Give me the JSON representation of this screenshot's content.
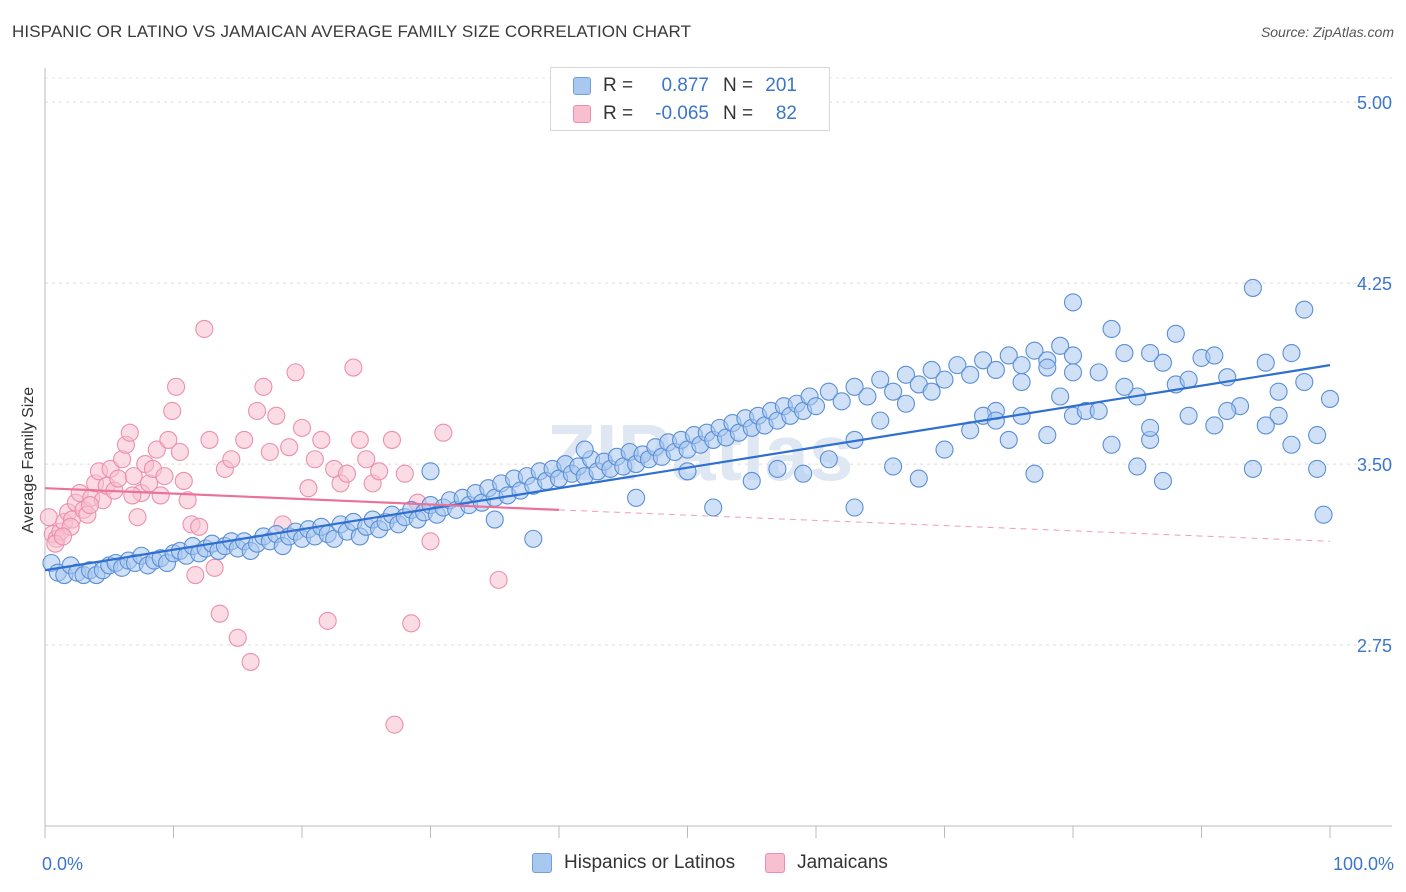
{
  "header": {
    "title": "HISPANIC OR LATINO VS JAMAICAN AVERAGE FAMILY SIZE CORRELATION CHART",
    "source": "Source: ZipAtlas.com"
  },
  "legend": {
    "rows": [
      {
        "r_label": "R =",
        "r_value": "0.877",
        "n_label": "N =",
        "n_value": "201",
        "color": "#a9c8f0",
        "border": "#6f9fdc"
      },
      {
        "r_label": "R =",
        "r_value": "-0.065",
        "n_label": "N =",
        "n_value": "82",
        "color": "#f8bfd0",
        "border": "#ec8fae"
      }
    ]
  },
  "bottom_legend": {
    "items": [
      {
        "label": "Hispanics or Latinos",
        "color": "#a9c8f0",
        "border": "#6f9fdc"
      },
      {
        "label": "Jamaicans",
        "color": "#f8bfd0",
        "border": "#ec8fae"
      }
    ]
  },
  "watermark": "ZIPatlas",
  "chart_data": {
    "type": "scatter",
    "title": "HISPANIC OR LATINO VS JAMAICAN AVERAGE FAMILY SIZE CORRELATION CHART",
    "xlabel": "",
    "ylabel": "Average Family Size",
    "xlim": [
      0,
      100
    ],
    "ylim": [
      2.0,
      5.1
    ],
    "x_tick_labels": [
      "0.0%",
      "100.0%"
    ],
    "y_ticks": [
      2.75,
      3.5,
      4.25,
      5.0
    ],
    "y_tick_labels": [
      "2.75",
      "3.50",
      "4.25",
      "5.00"
    ],
    "grid": "horizontal dashed",
    "legend_position": "top-center",
    "series": [
      {
        "name": "Hispanics or Latinos",
        "color": "#a9c8f0",
        "edge": "#5b8fd6",
        "trend_color": "#2f6fd0",
        "trend": {
          "x": [
            0,
            100
          ],
          "y": [
            3.06,
            3.91
          ]
        },
        "points": [
          [
            0.5,
            3.09
          ],
          [
            1,
            3.05
          ],
          [
            1.5,
            3.04
          ],
          [
            2,
            3.08
          ],
          [
            2.5,
            3.05
          ],
          [
            3,
            3.04
          ],
          [
            3.5,
            3.06
          ],
          [
            4,
            3.04
          ],
          [
            4.5,
            3.06
          ],
          [
            5,
            3.08
          ],
          [
            5.5,
            3.09
          ],
          [
            6,
            3.07
          ],
          [
            6.5,
            3.1
          ],
          [
            7,
            3.09
          ],
          [
            7.5,
            3.12
          ],
          [
            8,
            3.08
          ],
          [
            8.5,
            3.1
          ],
          [
            9,
            3.11
          ],
          [
            9.5,
            3.09
          ],
          [
            10,
            3.13
          ],
          [
            10.5,
            3.14
          ],
          [
            11,
            3.12
          ],
          [
            11.5,
            3.16
          ],
          [
            12,
            3.13
          ],
          [
            12.5,
            3.15
          ],
          [
            13,
            3.17
          ],
          [
            13.5,
            3.14
          ],
          [
            14,
            3.16
          ],
          [
            14.5,
            3.18
          ],
          [
            15,
            3.15
          ],
          [
            15.5,
            3.18
          ],
          [
            16,
            3.14
          ],
          [
            16.5,
            3.17
          ],
          [
            17,
            3.2
          ],
          [
            17.5,
            3.18
          ],
          [
            18,
            3.21
          ],
          [
            18.5,
            3.16
          ],
          [
            19,
            3.2
          ],
          [
            19.5,
            3.22
          ],
          [
            20,
            3.19
          ],
          [
            20.5,
            3.23
          ],
          [
            21,
            3.2
          ],
          [
            21.5,
            3.24
          ],
          [
            22,
            3.21
          ],
          [
            22.5,
            3.19
          ],
          [
            23,
            3.25
          ],
          [
            23.5,
            3.22
          ],
          [
            24,
            3.26
          ],
          [
            24.5,
            3.2
          ],
          [
            25,
            3.24
          ],
          [
            25.5,
            3.27
          ],
          [
            26,
            3.23
          ],
          [
            26.5,
            3.26
          ],
          [
            27,
            3.29
          ],
          [
            27.5,
            3.25
          ],
          [
            28,
            3.28
          ],
          [
            28.5,
            3.31
          ],
          [
            29,
            3.27
          ],
          [
            29.5,
            3.3
          ],
          [
            30,
            3.33
          ],
          [
            30.5,
            3.29
          ],
          [
            31,
            3.32
          ],
          [
            31.5,
            3.35
          ],
          [
            32,
            3.31
          ],
          [
            32.5,
            3.36
          ],
          [
            33,
            3.33
          ],
          [
            33.5,
            3.38
          ],
          [
            34,
            3.34
          ],
          [
            34.5,
            3.4
          ],
          [
            35,
            3.36
          ],
          [
            35.5,
            3.42
          ],
          [
            36,
            3.37
          ],
          [
            36.5,
            3.44
          ],
          [
            37,
            3.39
          ],
          [
            37.5,
            3.45
          ],
          [
            38,
            3.41
          ],
          [
            38.5,
            3.47
          ],
          [
            39,
            3.43
          ],
          [
            39.5,
            3.48
          ],
          [
            40,
            3.44
          ],
          [
            40.5,
            3.5
          ],
          [
            41,
            3.46
          ],
          [
            41.5,
            3.49
          ],
          [
            42,
            3.45
          ],
          [
            42.5,
            3.52
          ],
          [
            43,
            3.47
          ],
          [
            43.5,
            3.51
          ],
          [
            44,
            3.48
          ],
          [
            44.5,
            3.53
          ],
          [
            45,
            3.49
          ],
          [
            45.5,
            3.55
          ],
          [
            46,
            3.5
          ],
          [
            46.5,
            3.54
          ],
          [
            47,
            3.52
          ],
          [
            47.5,
            3.57
          ],
          [
            48,
            3.53
          ],
          [
            48.5,
            3.59
          ],
          [
            49,
            3.55
          ],
          [
            49.5,
            3.6
          ],
          [
            50,
            3.56
          ],
          [
            50.5,
            3.62
          ],
          [
            51,
            3.58
          ],
          [
            51.5,
            3.63
          ],
          [
            52,
            3.6
          ],
          [
            52.5,
            3.65
          ],
          [
            53,
            3.61
          ],
          [
            53.5,
            3.67
          ],
          [
            54,
            3.63
          ],
          [
            54.5,
            3.69
          ],
          [
            55,
            3.65
          ],
          [
            55.5,
            3.7
          ],
          [
            56,
            3.66
          ],
          [
            56.5,
            3.72
          ],
          [
            57,
            3.68
          ],
          [
            57.5,
            3.74
          ],
          [
            58,
            3.7
          ],
          [
            58.5,
            3.75
          ],
          [
            59,
            3.72
          ],
          [
            59.5,
            3.78
          ],
          [
            60,
            3.74
          ],
          [
            61,
            3.8
          ],
          [
            62,
            3.76
          ],
          [
            63,
            3.82
          ],
          [
            64,
            3.78
          ],
          [
            65,
            3.85
          ],
          [
            66,
            3.8
          ],
          [
            67,
            3.87
          ],
          [
            68,
            3.83
          ],
          [
            69,
            3.89
          ],
          [
            70,
            3.85
          ],
          [
            71,
            3.91
          ],
          [
            72,
            3.87
          ],
          [
            73,
            3.93
          ],
          [
            74,
            3.89
          ],
          [
            75,
            3.95
          ],
          [
            76,
            3.91
          ],
          [
            77,
            3.97
          ],
          [
            78,
            3.93
          ],
          [
            79,
            3.99
          ],
          [
            80,
            3.95
          ],
          [
            30,
            3.47
          ],
          [
            35,
            3.27
          ],
          [
            38,
            3.19
          ],
          [
            42,
            3.56
          ],
          [
            46,
            3.36
          ],
          [
            50,
            3.47
          ],
          [
            52,
            3.32
          ],
          [
            55,
            3.43
          ],
          [
            57,
            3.48
          ],
          [
            59,
            3.46
          ],
          [
            61,
            3.52
          ],
          [
            63,
            3.6
          ],
          [
            65,
            3.68
          ],
          [
            67,
            3.75
          ],
          [
            69,
            3.8
          ],
          [
            72,
            3.64
          ],
          [
            74,
            3.72
          ],
          [
            76,
            3.84
          ],
          [
            78,
            3.9
          ],
          [
            80,
            3.7
          ],
          [
            82,
            3.88
          ],
          [
            84,
            3.96
          ],
          [
            85,
            3.78
          ],
          [
            86,
            3.6
          ],
          [
            87,
            3.92
          ],
          [
            88,
            3.83
          ],
          [
            89,
            3.7
          ],
          [
            90,
            3.94
          ],
          [
            91,
            3.66
          ],
          [
            92,
            3.86
          ],
          [
            93,
            3.74
          ],
          [
            94,
            3.48
          ],
          [
            95,
            3.92
          ],
          [
            96,
            3.7
          ],
          [
            97,
            3.58
          ],
          [
            98,
            3.84
          ],
          [
            99,
            3.48
          ],
          [
            100,
            3.77
          ],
          [
            63,
            3.32
          ],
          [
            66,
            3.49
          ],
          [
            68,
            3.44
          ],
          [
            70,
            3.56
          ],
          [
            73,
            3.7
          ],
          [
            75,
            3.6
          ],
          [
            77,
            3.46
          ],
          [
            79,
            3.78
          ],
          [
            81,
            3.72
          ],
          [
            83,
            3.58
          ],
          [
            85,
            3.49
          ],
          [
            87,
            3.43
          ],
          [
            80,
            4.17
          ],
          [
            83,
            4.06
          ],
          [
            86,
            3.96
          ],
          [
            88,
            4.04
          ],
          [
            91,
            3.95
          ],
          [
            94,
            4.23
          ],
          [
            96,
            3.8
          ],
          [
            98,
            4.14
          ],
          [
            99,
            3.62
          ],
          [
            99.5,
            3.29
          ],
          [
            95,
            3.66
          ],
          [
            97,
            3.96
          ],
          [
            92,
            3.72
          ],
          [
            89,
            3.85
          ],
          [
            86,
            3.65
          ],
          [
            84,
            3.82
          ],
          [
            82,
            3.72
          ],
          [
            80,
            3.88
          ],
          [
            78,
            3.62
          ],
          [
            76,
            3.7
          ],
          [
            74,
            3.68
          ]
        ]
      },
      {
        "name": "Jamaicans",
        "color": "#f8bfd0",
        "edge": "#ec8fae",
        "trend_color": "#e9729a",
        "trend": {
          "x": [
            0,
            40
          ],
          "y": [
            3.4,
            3.31
          ],
          "dashed_to": [
            100,
            3.18
          ]
        },
        "points": [
          [
            0.3,
            3.28
          ],
          [
            0.6,
            3.21
          ],
          [
            0.9,
            3.19
          ],
          [
            1.2,
            3.22
          ],
          [
            1.5,
            3.26
          ],
          [
            1.8,
            3.3
          ],
          [
            2.1,
            3.27
          ],
          [
            2.4,
            3.34
          ],
          [
            2.7,
            3.38
          ],
          [
            3.0,
            3.31
          ],
          [
            3.3,
            3.29
          ],
          [
            3.6,
            3.36
          ],
          [
            3.9,
            3.42
          ],
          [
            4.2,
            3.47
          ],
          [
            4.5,
            3.35
          ],
          [
            4.8,
            3.41
          ],
          [
            5.1,
            3.48
          ],
          [
            5.4,
            3.39
          ],
          [
            5.7,
            3.44
          ],
          [
            6.0,
            3.52
          ],
          [
            6.3,
            3.58
          ],
          [
            6.6,
            3.63
          ],
          [
            6.9,
            3.45
          ],
          [
            7.2,
            3.28
          ],
          [
            7.5,
            3.38
          ],
          [
            7.8,
            3.5
          ],
          [
            8.1,
            3.42
          ],
          [
            8.4,
            3.48
          ],
          [
            8.7,
            3.56
          ],
          [
            9.0,
            3.37
          ],
          [
            9.3,
            3.45
          ],
          [
            9.6,
            3.6
          ],
          [
            9.9,
            3.72
          ],
          [
            10.2,
            3.82
          ],
          [
            10.5,
            3.55
          ],
          [
            10.8,
            3.43
          ],
          [
            11.1,
            3.35
          ],
          [
            11.4,
            3.25
          ],
          [
            11.7,
            3.04
          ],
          [
            12.0,
            3.24
          ],
          [
            12.4,
            4.06
          ],
          [
            12.8,
            3.6
          ],
          [
            13.2,
            3.07
          ],
          [
            13.6,
            2.88
          ],
          [
            14.0,
            3.48
          ],
          [
            14.5,
            3.52
          ],
          [
            15.0,
            2.78
          ],
          [
            15.5,
            3.6
          ],
          [
            16.0,
            2.68
          ],
          [
            16.5,
            3.72
          ],
          [
            17,
            3.82
          ],
          [
            17.5,
            3.55
          ],
          [
            18,
            3.7
          ],
          [
            18.5,
            3.25
          ],
          [
            19,
            3.57
          ],
          [
            19.5,
            3.88
          ],
          [
            20,
            3.65
          ],
          [
            20.5,
            3.4
          ],
          [
            21,
            3.52
          ],
          [
            21.5,
            3.6
          ],
          [
            22,
            2.85
          ],
          [
            22.5,
            3.48
          ],
          [
            23,
            3.42
          ],
          [
            23.5,
            3.46
          ],
          [
            24,
            3.9
          ],
          [
            24.5,
            3.6
          ],
          [
            25,
            3.52
          ],
          [
            25.5,
            3.42
          ],
          [
            26,
            3.47
          ],
          [
            27,
            3.6
          ],
          [
            28,
            3.46
          ],
          [
            29,
            3.34
          ],
          [
            30,
            3.18
          ],
          [
            31,
            3.63
          ],
          [
            27.2,
            2.42
          ],
          [
            28.5,
            2.84
          ],
          [
            35.3,
            3.02
          ],
          [
            2.0,
            3.24
          ],
          [
            3.5,
            3.33
          ],
          [
            6.8,
            3.37
          ],
          [
            0.8,
            3.17
          ],
          [
            1.4,
            3.2
          ]
        ]
      }
    ]
  }
}
